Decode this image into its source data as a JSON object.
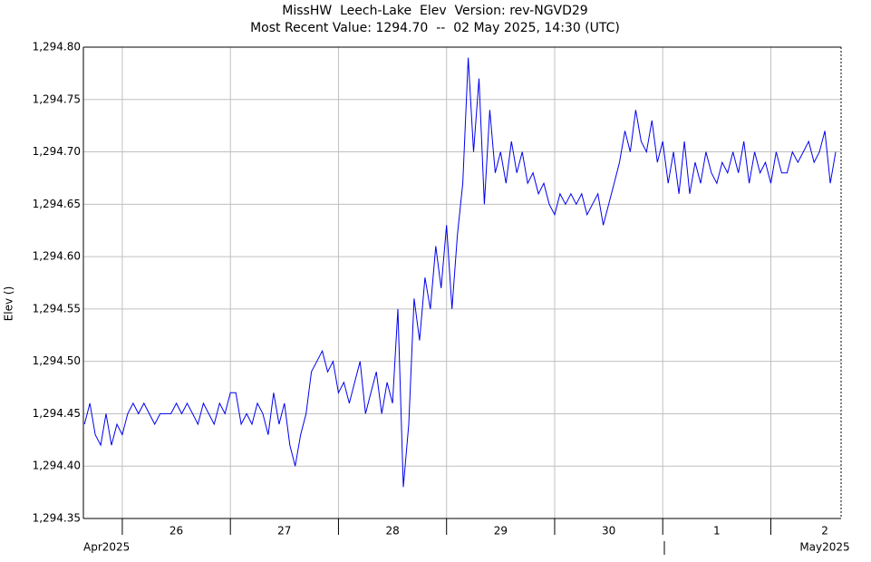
{
  "chart_data": {
    "type": "line",
    "title": "MissHW  Leech-Lake  Elev  Version: rev-NGVD29",
    "subtitle": "Most Recent Value: 1294.70  --  02 May 2025, 14:30 (UTC)",
    "y_label": "Elev ()",
    "month_labels": [
      "Apr2025",
      "May2025"
    ],
    "grid": true,
    "xlim": [
      25.64,
      32.65
    ],
    "xticks": [
      26,
      27,
      28,
      29,
      30,
      {
        "value": 31,
        "label": "1"
      },
      {
        "value": 32,
        "label": "2"
      }
    ],
    "ylim": [
      1294.35,
      1294.8
    ],
    "yticks": [
      {
        "value": 1294.35,
        "label": "1,294.35"
      },
      {
        "value": 1294.4,
        "label": "1,294.40"
      },
      {
        "value": 1294.45,
        "label": "1,294.45"
      },
      {
        "value": 1294.5,
        "label": "1,294.50"
      },
      {
        "value": 1294.55,
        "label": "1,294.55"
      },
      {
        "value": 1294.6,
        "label": "1,294.60"
      },
      {
        "value": 1294.65,
        "label": "1,294.65"
      },
      {
        "value": 1294.7,
        "label": "1,294.70"
      },
      {
        "value": 1294.75,
        "label": "1,294.75"
      },
      {
        "value": 1294.8,
        "label": "1,294.80"
      }
    ],
    "x": [
      25.65,
      25.7,
      25.75,
      25.8,
      25.85,
      25.9,
      25.95,
      26.0,
      26.05,
      26.1,
      26.15,
      26.2,
      26.25,
      26.3,
      26.35,
      26.4,
      26.45,
      26.5,
      26.55,
      26.6,
      26.65,
      26.7,
      26.75,
      26.8,
      26.85,
      26.9,
      26.95,
      27.0,
      27.05,
      27.1,
      27.15,
      27.2,
      27.25,
      27.3,
      27.35,
      27.4,
      27.45,
      27.5,
      27.55,
      27.6,
      27.65,
      27.7,
      27.75,
      27.8,
      27.85,
      27.9,
      27.95,
      28.0,
      28.05,
      28.1,
      28.15,
      28.2,
      28.25,
      28.3,
      28.35,
      28.4,
      28.45,
      28.5,
      28.55,
      28.6,
      28.65,
      28.7,
      28.75,
      28.8,
      28.85,
      28.9,
      28.95,
      29.0,
      29.05,
      29.1,
      29.15,
      29.2,
      29.25,
      29.3,
      29.35,
      29.4,
      29.45,
      29.5,
      29.55,
      29.6,
      29.65,
      29.7,
      29.75,
      29.8,
      29.85,
      29.9,
      29.95,
      30.0,
      30.05,
      30.1,
      30.15,
      30.2,
      30.25,
      30.3,
      30.35,
      30.4,
      30.45,
      30.5,
      30.55,
      30.6,
      30.65,
      30.7,
      30.75,
      30.8,
      30.85,
      30.9,
      30.95,
      31.0,
      31.05,
      31.1,
      31.15,
      31.2,
      31.25,
      31.3,
      31.35,
      31.4,
      31.45,
      31.5,
      31.55,
      31.6,
      31.65,
      31.7,
      31.75,
      31.8,
      31.85,
      31.9,
      31.95,
      32.0,
      32.05,
      32.1,
      32.15,
      32.2,
      32.25,
      32.3,
      32.35,
      32.4,
      32.45,
      32.5,
      32.55,
      32.6
    ],
    "series": [
      {
        "name": "Elev",
        "color": "#0000ee",
        "values": [
          1294.44,
          1294.46,
          1294.43,
          1294.42,
          1294.45,
          1294.42,
          1294.44,
          1294.43,
          1294.45,
          1294.46,
          1294.45,
          1294.46,
          1294.45,
          1294.44,
          1294.45,
          1294.45,
          1294.45,
          1294.46,
          1294.45,
          1294.46,
          1294.45,
          1294.44,
          1294.46,
          1294.45,
          1294.44,
          1294.46,
          1294.45,
          1294.47,
          1294.47,
          1294.44,
          1294.45,
          1294.44,
          1294.46,
          1294.45,
          1294.43,
          1294.47,
          1294.44,
          1294.46,
          1294.42,
          1294.4,
          1294.43,
          1294.45,
          1294.49,
          1294.5,
          1294.51,
          1294.49,
          1294.5,
          1294.47,
          1294.48,
          1294.46,
          1294.48,
          1294.5,
          1294.45,
          1294.47,
          1294.49,
          1294.45,
          1294.48,
          1294.46,
          1294.55,
          1294.38,
          1294.44,
          1294.56,
          1294.52,
          1294.58,
          1294.55,
          1294.61,
          1294.57,
          1294.63,
          1294.55,
          1294.62,
          1294.67,
          1294.79,
          1294.7,
          1294.77,
          1294.65,
          1294.74,
          1294.68,
          1294.7,
          1294.67,
          1294.71,
          1294.68,
          1294.7,
          1294.67,
          1294.68,
          1294.66,
          1294.67,
          1294.65,
          1294.64,
          1294.66,
          1294.65,
          1294.66,
          1294.65,
          1294.66,
          1294.64,
          1294.65,
          1294.66,
          1294.63,
          1294.65,
          1294.67,
          1294.69,
          1294.72,
          1294.7,
          1294.74,
          1294.71,
          1294.7,
          1294.73,
          1294.69,
          1294.71,
          1294.67,
          1294.7,
          1294.66,
          1294.71,
          1294.66,
          1294.69,
          1294.67,
          1294.7,
          1294.68,
          1294.67,
          1294.69,
          1294.68,
          1294.7,
          1294.68,
          1294.71,
          1294.67,
          1294.7,
          1294.68,
          1294.69,
          1294.67,
          1294.7,
          1294.68,
          1294.68,
          1294.7,
          1294.69,
          1294.7,
          1294.71,
          1294.69,
          1294.7,
          1294.72,
          1294.67,
          1294.7
        ]
      }
    ]
  }
}
